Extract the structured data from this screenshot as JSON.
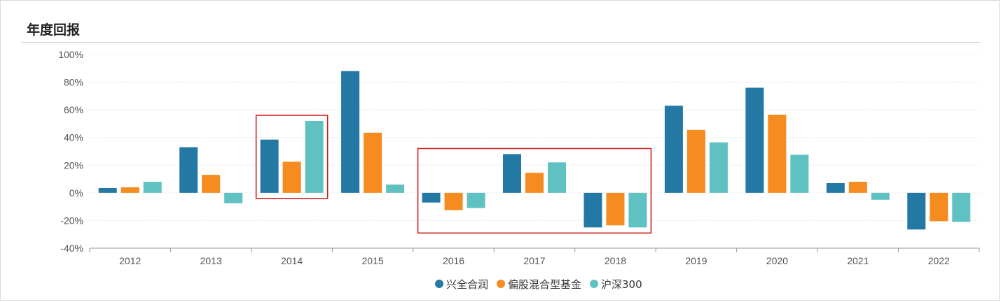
{
  "panel": {
    "title": "年度回报"
  },
  "colors": {
    "series": [
      "#2478a4",
      "#f68b1f",
      "#5fc1c2"
    ],
    "highlight": "#cc2222",
    "grid": "#e6e6e6",
    "axis": "#999999"
  },
  "chart_data": {
    "type": "bar",
    "categories": [
      "2012",
      "2013",
      "2014",
      "2015",
      "2016",
      "2017",
      "2018",
      "2019",
      "2020",
      "2021",
      "2022"
    ],
    "series": [
      {
        "name": "兴全合润",
        "values": [
          3.5,
          33,
          38.5,
          88,
          -7,
          28,
          -25,
          63,
          76,
          7,
          -26.5
        ]
      },
      {
        "name": "偏股混合型基金",
        "values": [
          4,
          13,
          22.5,
          43.5,
          -12.5,
          14.5,
          -23.5,
          45.5,
          56.5,
          8,
          -20.5
        ]
      },
      {
        "name": "沪深300",
        "values": [
          8,
          -7.5,
          52,
          6,
          -11,
          22,
          -25,
          36.5,
          27.5,
          -5,
          -21
        ]
      }
    ],
    "yticks": [
      "100%",
      "80%",
      "60%",
      "40%",
      "20%",
      "0%",
      "-20%",
      "-40%"
    ],
    "ylim": [
      -40,
      100
    ],
    "grid": true,
    "legend_position": "bottom-center",
    "highlights": [
      {
        "from": "2014",
        "to": "2014"
      },
      {
        "from": "2016",
        "to": "2018"
      }
    ]
  }
}
